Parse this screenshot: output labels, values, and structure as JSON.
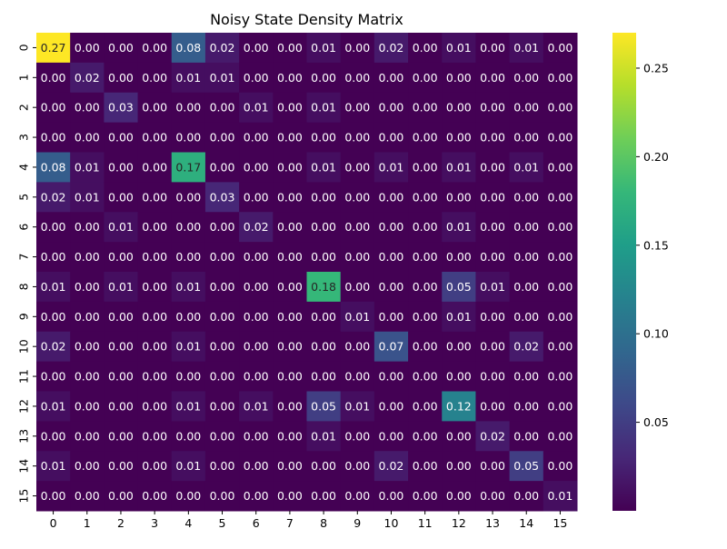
{
  "chart_data": {
    "type": "heatmap",
    "title": "Noisy State Density Matrix",
    "xlabel": "",
    "ylabel": "",
    "x_tick_labels": [
      "0",
      "1",
      "2",
      "3",
      "4",
      "5",
      "6",
      "7",
      "8",
      "9",
      "10",
      "11",
      "12",
      "13",
      "14",
      "15"
    ],
    "y_tick_labels": [
      "0",
      "1",
      "2",
      "3",
      "4",
      "5",
      "6",
      "7",
      "8",
      "9",
      "10",
      "11",
      "12",
      "13",
      "14",
      "15"
    ],
    "colormap": "viridis",
    "vmin": 0.0,
    "vmax": 0.27,
    "colorbar_ticks": [
      0.05,
      0.1,
      0.15,
      0.2,
      0.25
    ],
    "colorbar_tick_labels": [
      "0.05",
      "0.10",
      "0.15",
      "0.20",
      "0.25"
    ],
    "cell_text_light": "#ffffff",
    "cell_text_dark": "#262626",
    "values": [
      [
        0.27,
        0.0,
        0.0,
        0.0,
        0.08,
        0.02,
        0.0,
        0.0,
        0.01,
        0.0,
        0.02,
        0.0,
        0.01,
        0.0,
        0.01,
        0.0
      ],
      [
        0.0,
        0.02,
        0.0,
        0.0,
        0.01,
        0.01,
        0.0,
        0.0,
        0.0,
        0.0,
        0.0,
        0.0,
        0.0,
        0.0,
        0.0,
        0.0
      ],
      [
        0.0,
        0.0,
        0.03,
        0.0,
        0.0,
        0.0,
        0.01,
        0.0,
        0.01,
        0.0,
        0.0,
        0.0,
        0.0,
        0.0,
        0.0,
        0.0
      ],
      [
        0.0,
        0.0,
        0.0,
        0.0,
        0.0,
        0.0,
        0.0,
        0.0,
        0.0,
        0.0,
        0.0,
        0.0,
        0.0,
        0.0,
        0.0,
        0.0
      ],
      [
        0.08,
        0.01,
        0.0,
        0.0,
        0.17,
        0.0,
        0.0,
        0.0,
        0.01,
        0.0,
        0.01,
        0.0,
        0.01,
        0.0,
        0.01,
        0.0
      ],
      [
        0.02,
        0.01,
        0.0,
        0.0,
        0.0,
        0.03,
        0.0,
        0.0,
        0.0,
        0.0,
        0.0,
        0.0,
        0.0,
        0.0,
        0.0,
        0.0
      ],
      [
        0.0,
        0.0,
        0.01,
        0.0,
        0.0,
        0.0,
        0.02,
        0.0,
        0.0,
        0.0,
        0.0,
        0.0,
        0.01,
        0.0,
        0.0,
        0.0
      ],
      [
        0.0,
        0.0,
        0.0,
        0.0,
        0.0,
        0.0,
        0.0,
        0.0,
        0.0,
        0.0,
        0.0,
        0.0,
        0.0,
        0.0,
        0.0,
        0.0
      ],
      [
        0.01,
        0.0,
        0.01,
        0.0,
        0.01,
        0.0,
        0.0,
        0.0,
        0.18,
        0.0,
        0.0,
        0.0,
        0.05,
        0.01,
        0.0,
        0.0
      ],
      [
        0.0,
        0.0,
        0.0,
        0.0,
        0.0,
        0.0,
        0.0,
        0.0,
        0.0,
        0.01,
        0.0,
        0.0,
        0.01,
        0.0,
        0.0,
        0.0
      ],
      [
        0.02,
        0.0,
        0.0,
        0.0,
        0.01,
        0.0,
        0.0,
        0.0,
        0.0,
        0.0,
        0.07,
        0.0,
        0.0,
        0.0,
        0.02,
        0.0
      ],
      [
        0.0,
        0.0,
        0.0,
        0.0,
        0.0,
        0.0,
        0.0,
        0.0,
        0.0,
        0.0,
        0.0,
        0.0,
        0.0,
        0.0,
        0.0,
        0.0
      ],
      [
        0.01,
        0.0,
        0.0,
        0.0,
        0.01,
        0.0,
        0.01,
        0.0,
        0.05,
        0.01,
        0.0,
        0.0,
        0.12,
        0.0,
        0.0,
        0.0
      ],
      [
        0.0,
        0.0,
        0.0,
        0.0,
        0.0,
        0.0,
        0.0,
        0.0,
        0.01,
        0.0,
        0.0,
        0.0,
        0.0,
        0.02,
        0.0,
        0.0
      ],
      [
        0.01,
        0.0,
        0.0,
        0.0,
        0.01,
        0.0,
        0.0,
        0.0,
        0.0,
        0.0,
        0.02,
        0.0,
        0.0,
        0.0,
        0.05,
        0.0
      ],
      [
        0.0,
        0.0,
        0.0,
        0.0,
        0.0,
        0.0,
        0.0,
        0.0,
        0.0,
        0.0,
        0.0,
        0.0,
        0.0,
        0.0,
        0.0,
        0.01
      ]
    ]
  }
}
